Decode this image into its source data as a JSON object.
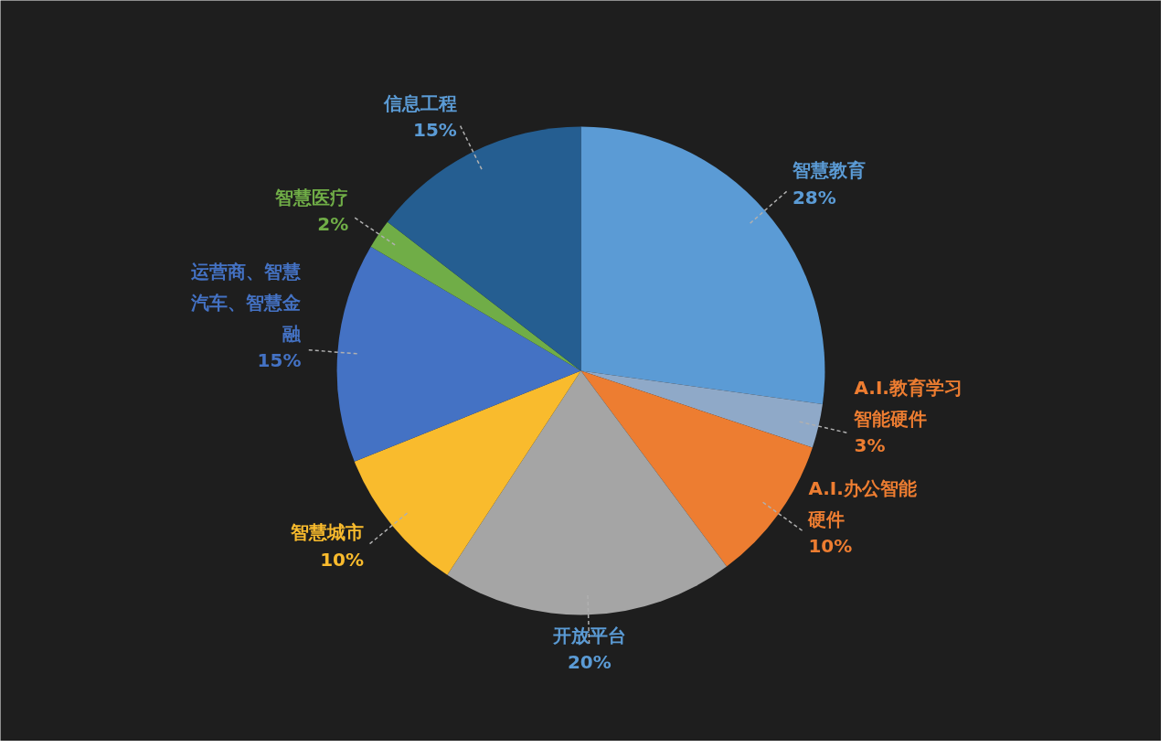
{
  "chart_data": {
    "type": "pie",
    "categories": [
      "智慧教育",
      "A.I.教育学习智能硬件",
      "A.I.办公智能硬件",
      "开放平台",
      "智慧城市",
      "运营商、智慧汽车、智慧金融",
      "智慧医疗",
      "信息工程"
    ],
    "values": [
      28,
      3,
      10,
      20,
      10,
      15,
      2,
      15
    ],
    "colors": [
      "#5b9bd5",
      "#8fa9c8",
      "#ed7d31",
      "#a5a5a5",
      "#f9bb2d",
      "#4472c4",
      "#70ad47",
      "#255e91"
    ],
    "value_labels": [
      "28%",
      "3%",
      "10%",
      "20%",
      "10%",
      "15%",
      "2%",
      "15%"
    ]
  }
}
